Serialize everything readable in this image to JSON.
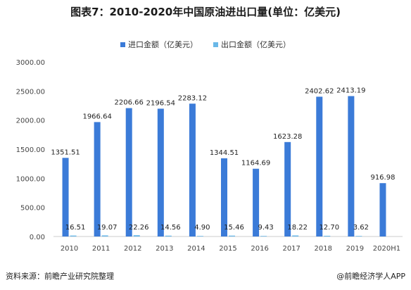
{
  "title": "图表7：2010-2020年中国原油进出口量(单位：亿美元)",
  "source": "资料来源：前瞻产业研究院整理",
  "credit": "@前瞻经济学人APP",
  "chart_data": {
    "type": "bar",
    "title": "图表7：2010-2020年中国原油进出口量(单位：亿美元)",
    "categories": [
      "2010",
      "2011",
      "2012",
      "2013",
      "2014",
      "2015",
      "2016",
      "2017",
      "2018",
      "2019",
      "2020H1"
    ],
    "series": [
      {
        "name": "进口金额（亿美元）",
        "color": "#3b7bd8",
        "values": [
          1351.51,
          1966.64,
          2206.66,
          2196.54,
          2283.12,
          1344.51,
          1164.69,
          1623.28,
          2402.62,
          2413.19,
          916.98
        ]
      },
      {
        "name": "出口金额（亿美元）",
        "color": "#6ab8e8",
        "values": [
          16.51,
          19.07,
          22.26,
          14.56,
          4.9,
          15.46,
          9.43,
          18.22,
          12.7,
          3.62,
          null
        ]
      }
    ],
    "value_labels": [
      [
        "1351.51",
        "1966.64",
        "2206.66",
        "2196.54",
        "2283.12",
        "1344.51",
        "1164.69",
        "1623.28",
        "2402.62",
        "2413.19",
        "916.98"
      ],
      [
        "16.51",
        "19.07",
        "22.26",
        "14.56",
        "4.90",
        "15.46",
        "9.43",
        "18.22",
        "12.70",
        "3.62",
        ""
      ]
    ],
    "y_ticks": [
      "0.00",
      "500.00",
      "1000.00",
      "1500.00",
      "2000.00",
      "2500.00",
      "3000.00"
    ],
    "ylim": [
      0,
      3000
    ],
    "xlabel": "",
    "ylabel": "",
    "legend_position": "top-center",
    "grid": false
  }
}
